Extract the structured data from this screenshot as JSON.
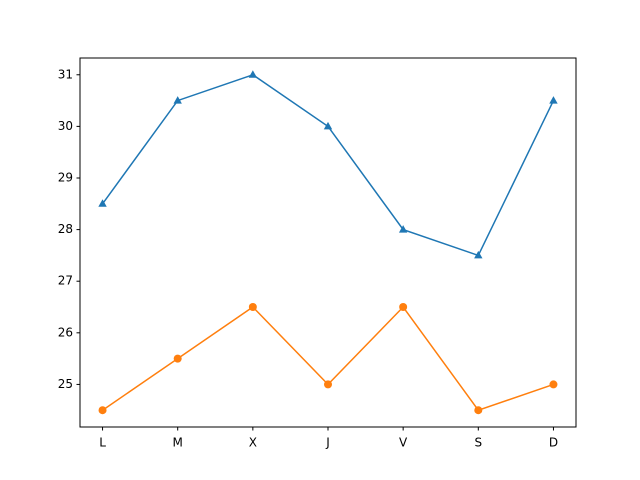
{
  "chart_data": {
    "type": "line",
    "categories": [
      "L",
      "M",
      "X",
      "J",
      "V",
      "S",
      "D"
    ],
    "series": [
      {
        "color": "#1f77b4",
        "marker": "triangle",
        "values": [
          28.5,
          30.5,
          31,
          30,
          28,
          27.5,
          30.5
        ]
      },
      {
        "color": "#ff7f0e",
        "marker": "circle",
        "values": [
          24.5,
          25.5,
          26.5,
          25,
          26.5,
          24.5,
          25
        ]
      }
    ],
    "ylim": [
      24.175,
      31.325
    ],
    "yticks": [
      25,
      26,
      27,
      28,
      29,
      30,
      31
    ],
    "grid": false
  }
}
